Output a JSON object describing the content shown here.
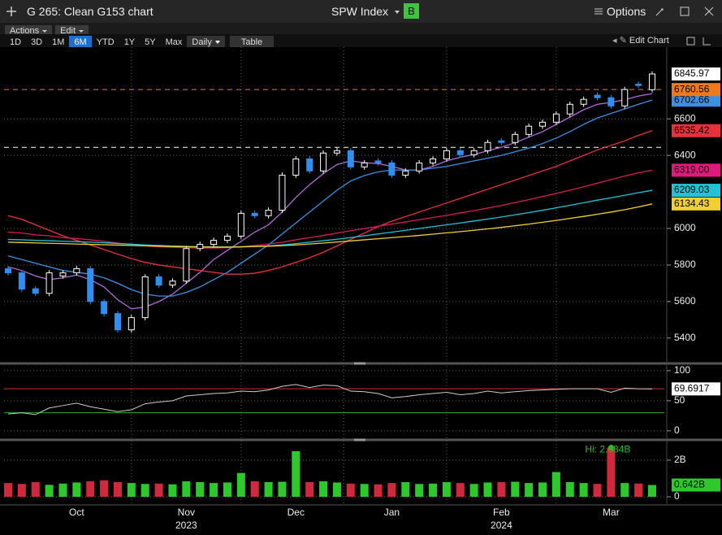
{
  "header": {
    "title": "G 265: Clean G153 chart",
    "ticker": "SPW Index",
    "badge": "B",
    "options": "Options"
  },
  "toolbar": {
    "menus": [
      "Actions",
      "Edit"
    ],
    "periods": [
      "1D",
      "3D",
      "1M",
      "6M",
      "YTD",
      "1Y",
      "5Y",
      "Max"
    ],
    "selected": "6M",
    "frequency": "Daily",
    "table": "Table",
    "edit_chart": "Edit Chart"
  },
  "chart_data": [
    {
      "type": "candlestick",
      "categories": [
        null,
        null,
        null,
        null,
        null,
        "Oct",
        null,
        null,
        null,
        null,
        null,
        null,
        null,
        "Nov",
        null,
        null,
        null,
        null,
        null,
        null,
        null,
        "Dec",
        null,
        null,
        null,
        null,
        null,
        null,
        "Jan",
        null,
        null,
        null,
        null,
        null,
        null,
        null,
        "Feb",
        null,
        null,
        null,
        null,
        null,
        null,
        null,
        "Mar",
        null,
        null,
        null
      ],
      "category_years": [
        null,
        null,
        null,
        null,
        null,
        null,
        null,
        null,
        null,
        null,
        null,
        null,
        null,
        "2023",
        null,
        null,
        null,
        null,
        null,
        null,
        null,
        null,
        null,
        null,
        null,
        null,
        null,
        null,
        null,
        null,
        null,
        null,
        null,
        null,
        null,
        null,
        "2024",
        null,
        null,
        null,
        null,
        null,
        null,
        null,
        null,
        null,
        null,
        null
      ],
      "open": [
        5780,
        5757,
        5670,
        5645,
        5740,
        5757,
        5780,
        5600,
        5534,
        5445,
        5512,
        5735,
        5690,
        5712,
        5890,
        5913,
        5935,
        5958,
        6083,
        6070,
        6100,
        6292,
        6381,
        6315,
        6413,
        6426,
        6337,
        6370,
        6359,
        6292,
        6315,
        6359,
        6381,
        6426,
        6404,
        6426,
        6480,
        6471,
        6515,
        6560,
        6582,
        6627,
        6680,
        6730,
        6716,
        6671,
        6790,
        6760
      ],
      "high": [
        5795,
        5772,
        5685,
        5772,
        5772,
        5795,
        5795,
        5615,
        5549,
        5527,
        5750,
        5750,
        5727,
        5905,
        5928,
        5950,
        5973,
        6098,
        6098,
        6115,
        6307,
        6396,
        6396,
        6428,
        6441,
        6441,
        6374,
        6385,
        6374,
        6330,
        6374,
        6396,
        6441,
        6441,
        6441,
        6486,
        6495,
        6530,
        6575,
        6597,
        6642,
        6695,
        6722,
        6745,
        6731,
        6776,
        6805,
        6861
      ],
      "low": [
        5742,
        5653,
        5630,
        5630,
        5725,
        5742,
        5585,
        5519,
        5430,
        5430,
        5497,
        5675,
        5675,
        5697,
        5875,
        5898,
        5920,
        5943,
        6055,
        6055,
        6085,
        6277,
        6300,
        6300,
        6398,
        6322,
        6322,
        6344,
        6277,
        6277,
        6300,
        6344,
        6366,
        6389,
        6389,
        6411,
        6456,
        6456,
        6500,
        6545,
        6567,
        6612,
        6665,
        6701,
        6656,
        6656,
        6768,
        6745
      ],
      "close": [
        5757,
        5668,
        5645,
        5757,
        5757,
        5780,
        5600,
        5534,
        5445,
        5512,
        5735,
        5690,
        5712,
        5890,
        5913,
        5935,
        5958,
        6083,
        6070,
        6100,
        6292,
        6381,
        6315,
        6413,
        6426,
        6337,
        6359,
        6359,
        6292,
        6315,
        6359,
        6381,
        6426,
        6404,
        6426,
        6471,
        6471,
        6515,
        6560,
        6582,
        6627,
        6680,
        6707,
        6716,
        6671,
        6761,
        6783,
        6845.97
      ],
      "up_color": "#ffffff",
      "down_color": "#2f8ff0",
      "series": [
        {
          "color": "#b56ad8",
          "values": [
            5790,
            5770,
            5740,
            5720,
            5730,
            5745,
            5720,
            5680,
            5610,
            5560,
            5570,
            5600,
            5640,
            5700,
            5760,
            5830,
            5880,
            5930,
            5980,
            6020,
            6090,
            6170,
            6240,
            6300,
            6350,
            6370,
            6360,
            6355,
            6340,
            6320,
            6320,
            6340,
            6370,
            6390,
            6405,
            6425,
            6445,
            6470,
            6500,
            6530,
            6570,
            6610,
            6650,
            6680,
            6690,
            6705,
            6725,
            6738
          ]
        },
        {
          "color": "#3d8fe0",
          "values": [
            5850,
            5830,
            5810,
            5790,
            5770,
            5760,
            5750,
            5730,
            5700,
            5665,
            5640,
            5630,
            5630,
            5650,
            5680,
            5720,
            5760,
            5810,
            5860,
            5910,
            5970,
            6030,
            6090,
            6150,
            6210,
            6260,
            6290,
            6310,
            6320,
            6320,
            6320,
            6330,
            6340,
            6355,
            6370,
            6385,
            6400,
            6420,
            6440,
            6465,
            6495,
            6530,
            6570,
            6605,
            6630,
            6655,
            6680,
            6702.66
          ]
        },
        {
          "color": "#e8313a",
          "values": [
            6070,
            6050,
            6020,
            5990,
            5960,
            5935,
            5910,
            5885,
            5860,
            5835,
            5815,
            5800,
            5790,
            5780,
            5770,
            5760,
            5750,
            5750,
            5755,
            5770,
            5790,
            5815,
            5840,
            5870,
            5905,
            5940,
            5975,
            6010,
            6040,
            6065,
            6090,
            6115,
            6140,
            6165,
            6190,
            6215,
            6240,
            6265,
            6290,
            6315,
            6340,
            6370,
            6400,
            6430,
            6455,
            6480,
            6510,
            6535.42
          ]
        },
        {
          "color": "#d81b60",
          "label_color": "#e0197d",
          "end_label": "6319.00",
          "values": [
            5980,
            5975,
            5965,
            5960,
            5950,
            5945,
            5938,
            5930,
            5920,
            5912,
            5905,
            5900,
            5897,
            5895,
            5893,
            5893,
            5895,
            5900,
            5907,
            5915,
            5925,
            5938,
            5950,
            5962,
            5975,
            5988,
            6000,
            6012,
            6024,
            6036,
            6048,
            6060,
            6072,
            6085,
            6098,
            6112,
            6126,
            6142,
            6158,
            6175,
            6192,
            6210,
            6228,
            6248,
            6268,
            6287,
            6305,
            6319
          ]
        },
        {
          "color": "#22c3d6",
          "values": [
            5940,
            5938,
            5935,
            5933,
            5930,
            5928,
            5925,
            5922,
            5918,
            5914,
            5910,
            5907,
            5904,
            5902,
            5900,
            5899,
            5899,
            5900,
            5902,
            5905,
            5910,
            5917,
            5925,
            5933,
            5941,
            5950,
            5960,
            5970,
            5980,
            5990,
            6000,
            6010,
            6020,
            6030,
            6041,
            6052,
            6063,
            6075,
            6087,
            6100,
            6113,
            6127,
            6141,
            6155,
            6168,
            6182,
            6196,
            6209.03
          ]
        },
        {
          "color": "#f0d030",
          "values": [
            5925,
            5923,
            5921,
            5919,
            5917,
            5915,
            5913,
            5911,
            5909,
            5907,
            5905,
            5903,
            5901,
            5900,
            5899,
            5898,
            5898,
            5899,
            5901,
            5903,
            5906,
            5910,
            5915,
            5920,
            5926,
            5932,
            5938,
            5944,
            5950,
            5956,
            5962,
            5969,
            5976,
            5983,
            5990,
            5998,
            6006,
            6015,
            6024,
            6034,
            6044,
            6055,
            6066,
            6078,
            6090,
            6103,
            6118,
            6134.43
          ]
        }
      ],
      "reference_lines": [
        {
          "value": 6760.56,
          "color": "#f07a1a",
          "show_label": true
        },
        {
          "value": 6444,
          "color": "#ffffff",
          "show_label": false
        }
      ],
      "ylim": [
        5270,
        6975
      ],
      "yticks": [
        5400,
        5600,
        5800,
        6000,
        6400,
        6600
      ],
      "grid": true
    },
    {
      "type": "line",
      "values": [
        28,
        30,
        27,
        38,
        42,
        46,
        40,
        36,
        32,
        35,
        45,
        48,
        50,
        58,
        60,
        62,
        63,
        66,
        65,
        68,
        74,
        77,
        72,
        76,
        75,
        66,
        65,
        62,
        55,
        57,
        60,
        62,
        64,
        60,
        62,
        66,
        63,
        65,
        67,
        68,
        69,
        70,
        70,
        70,
        64,
        71,
        70,
        69.6917
      ],
      "color": "#cccccc",
      "reference_lines": [
        {
          "value": 70,
          "color": "#d23030"
        },
        {
          "value": 30,
          "color": "#22b022"
        }
      ],
      "ylim": [
        -11,
        108
      ],
      "yticks": [
        0,
        50,
        100
      ],
      "grid": true
    },
    {
      "type": "bar",
      "values": [
        0.75,
        0.7,
        0.8,
        0.65,
        0.72,
        0.78,
        0.85,
        0.9,
        0.8,
        0.75,
        0.7,
        0.72,
        0.68,
        0.85,
        0.8,
        0.75,
        0.78,
        1.3,
        0.85,
        0.8,
        0.82,
        2.49,
        0.8,
        0.85,
        0.78,
        0.72,
        0.7,
        0.68,
        0.75,
        0.8,
        0.7,
        0.72,
        0.8,
        0.75,
        0.7,
        0.78,
        0.8,
        0.82,
        0.75,
        0.78,
        1.35,
        0.8,
        0.75,
        0.7,
        2.684,
        0.75,
        0.72,
        0.642
      ],
      "end_label": "0.642B",
      "up_color": "#2cc82c",
      "down_color": "#d0283c",
      "annotation": {
        "text": "Hi: 2.684B",
        "index": 44,
        "color": "#22c022"
      },
      "ylim": [
        -0.4,
        2.93
      ],
      "yticks": [
        0,
        {
          "value": 2,
          "label": "2B"
        }
      ],
      "grid": true
    }
  ]
}
